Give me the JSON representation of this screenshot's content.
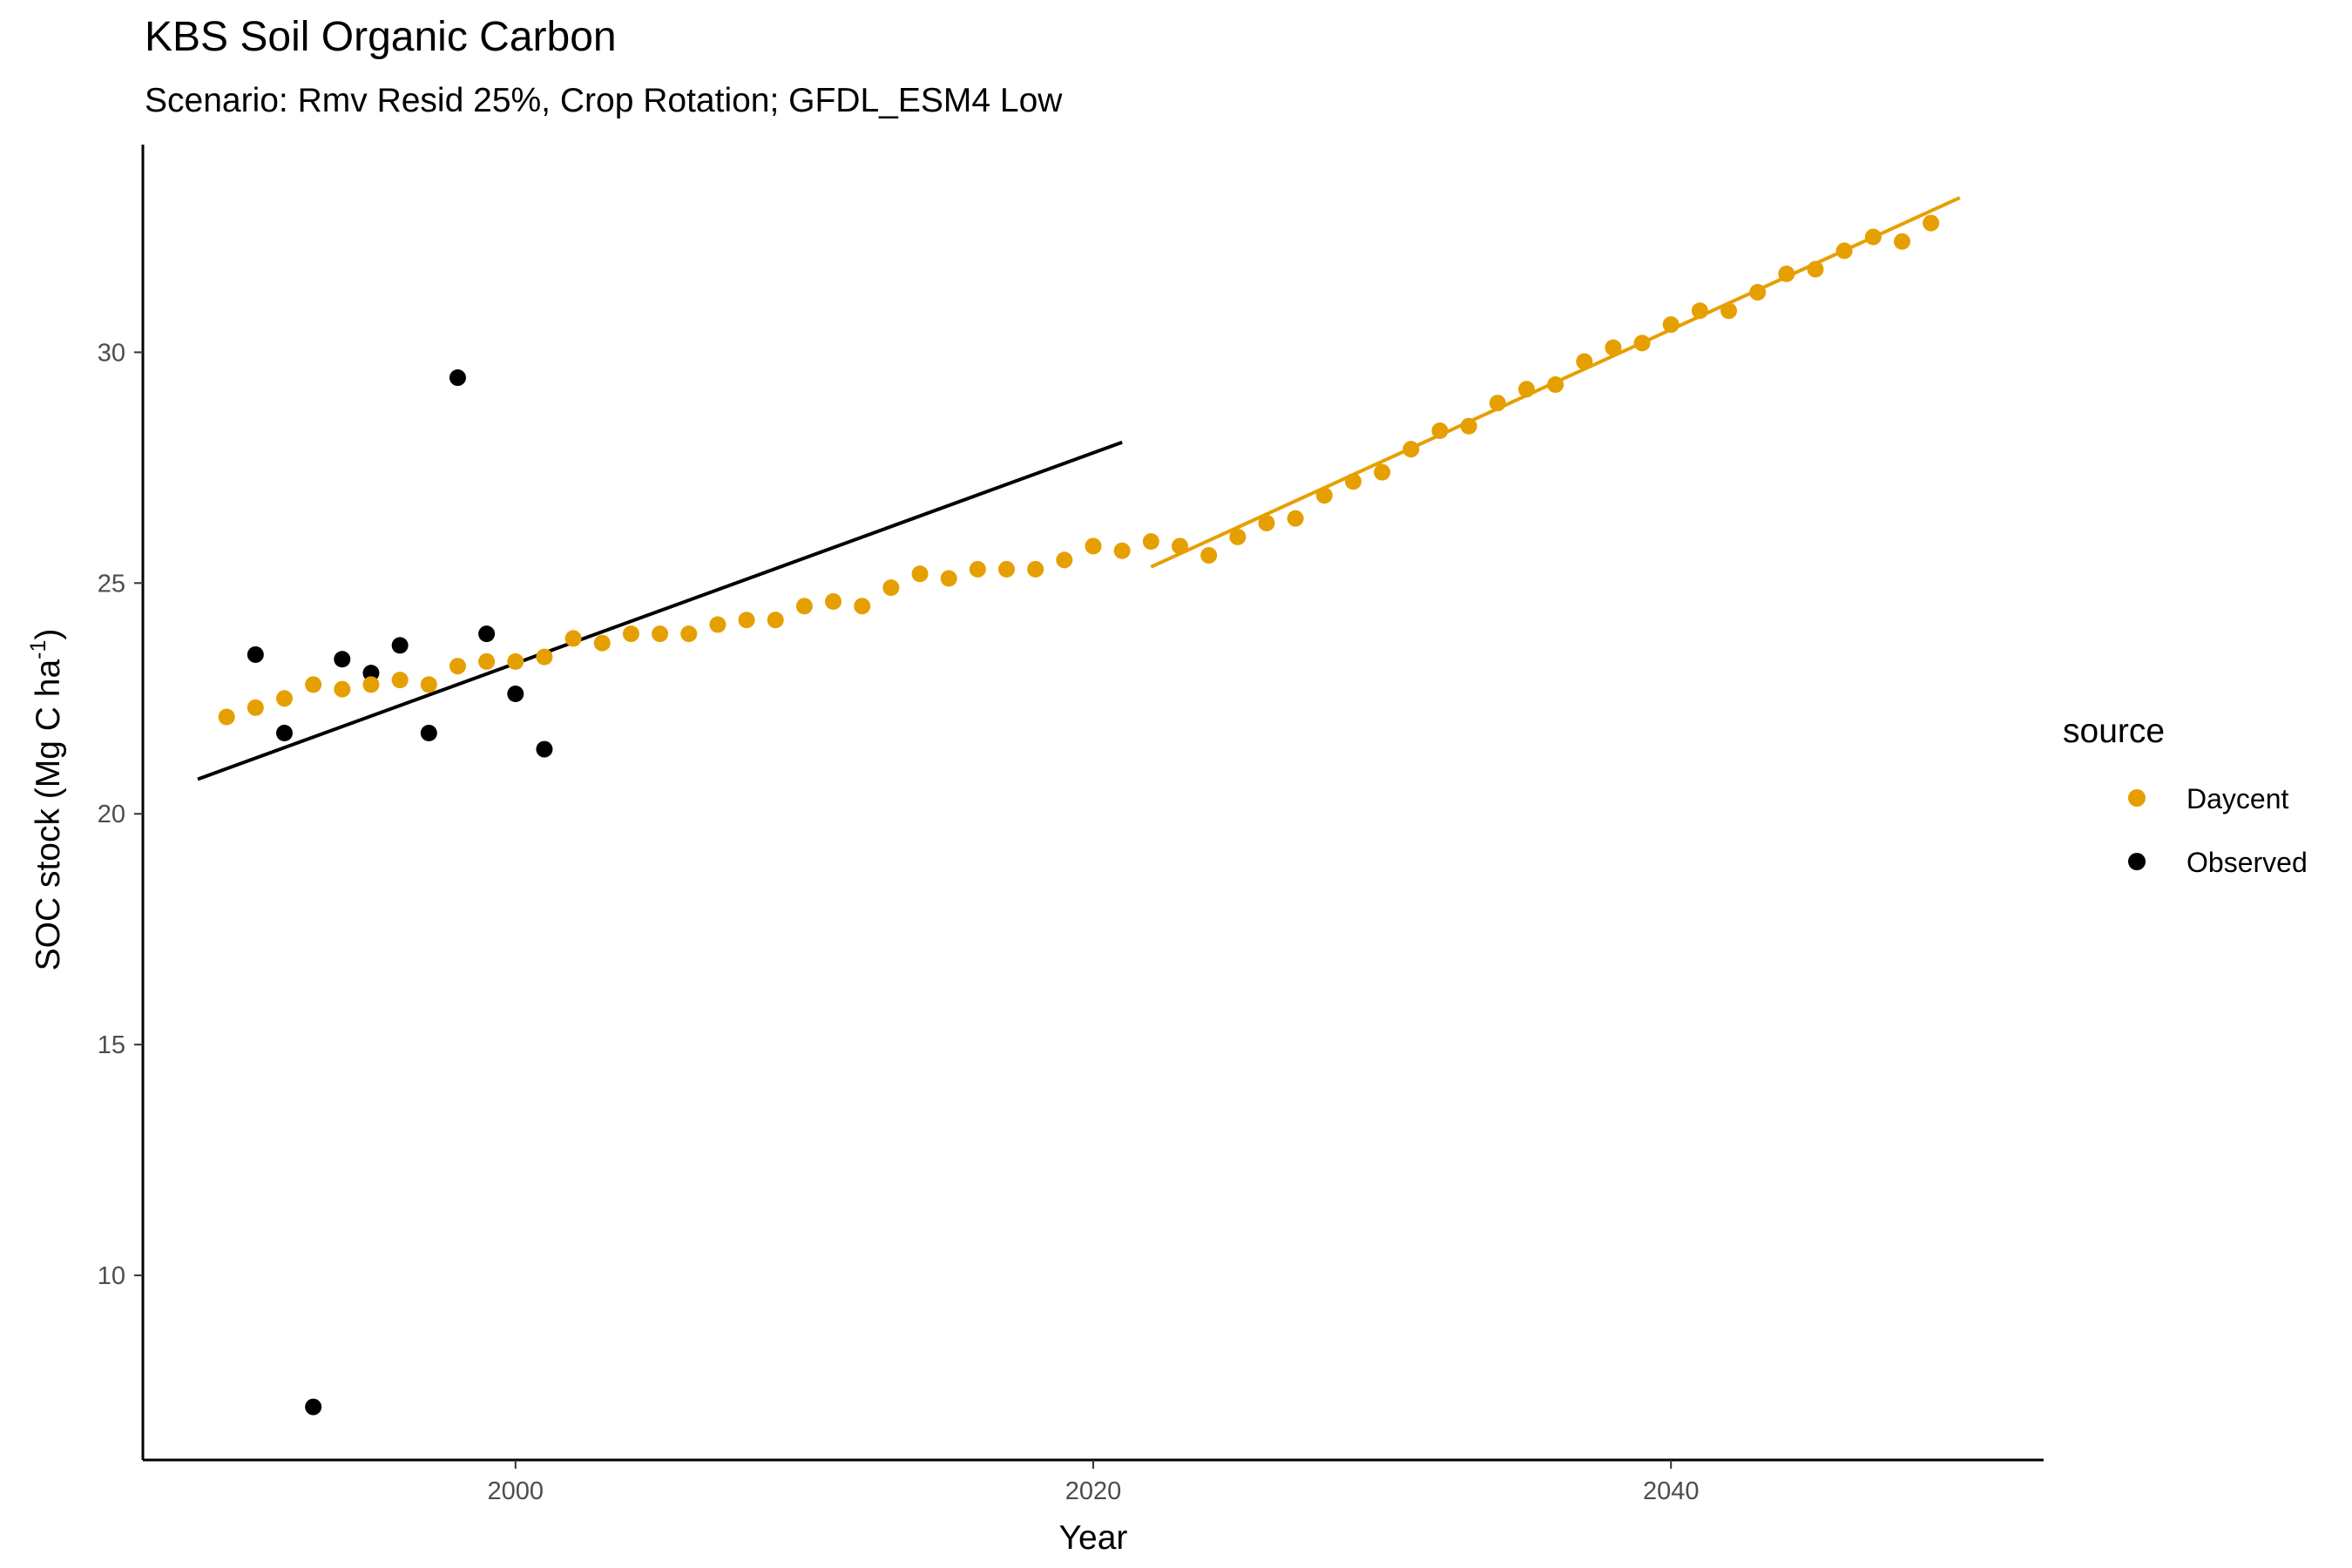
{
  "chart_data": {
    "type": "scatter",
    "title": "KBS Soil Organic Carbon",
    "subtitle": "Scenario: Rmv Resid 25%, Crop Rotation; GFDL_ESM4 Low",
    "xlabel": "Year",
    "ylabel_main": "SOC stock (Mg C ha",
    "ylabel_sup": "-1",
    "ylabel_close": ")",
    "xlim": [
      1987.1,
      2052.9
    ],
    "ylim": [
      6.0,
      34.5
    ],
    "x_ticks": [
      2000,
      2020,
      2040
    ],
    "x_tick_labels": [
      "2000",
      "2020",
      "2040"
    ],
    "y_ticks": [
      10,
      15,
      20,
      25,
      30
    ],
    "y_tick_labels": [
      "10",
      "15",
      "20",
      "25",
      "30"
    ],
    "grid": false,
    "legend": {
      "title": "source",
      "position": "right",
      "entries": [
        {
          "label": "Daycent",
          "color": "#E69F00"
        },
        {
          "label": "Observed",
          "color": "#000000"
        }
      ]
    },
    "series": [
      {
        "name": "Daycent",
        "color": "#E69F00",
        "points": [
          [
            1990,
            22.1
          ],
          [
            1991,
            22.3
          ],
          [
            1992,
            22.5
          ],
          [
            1993,
            22.8
          ],
          [
            1994,
            22.7
          ],
          [
            1995,
            22.8
          ],
          [
            1996,
            22.9
          ],
          [
            1997,
            22.8
          ],
          [
            1998,
            23.2
          ],
          [
            1999,
            23.3
          ],
          [
            2000,
            23.3
          ],
          [
            2001,
            23.4
          ],
          [
            2002,
            23.8
          ],
          [
            2003,
            23.7
          ],
          [
            2004,
            23.9
          ],
          [
            2005,
            23.9
          ],
          [
            2006,
            23.9
          ],
          [
            2007,
            24.1
          ],
          [
            2008,
            24.2
          ],
          [
            2009,
            24.2
          ],
          [
            2010,
            24.5
          ],
          [
            2011,
            24.6
          ],
          [
            2012,
            24.5
          ],
          [
            2013,
            24.9
          ],
          [
            2014,
            25.2
          ],
          [
            2015,
            25.1
          ],
          [
            2016,
            25.3
          ],
          [
            2017,
            25.3
          ],
          [
            2018,
            25.3
          ],
          [
            2019,
            25.5
          ],
          [
            2020,
            25.8
          ],
          [
            2021,
            25.7
          ],
          [
            2022,
            25.9
          ],
          [
            2023,
            25.8
          ],
          [
            2024,
            25.6
          ],
          [
            2025,
            26.0
          ],
          [
            2026,
            26.3
          ],
          [
            2027,
            26.4
          ],
          [
            2028,
            26.9
          ],
          [
            2029,
            27.2
          ],
          [
            2030,
            27.4
          ],
          [
            2031,
            27.9
          ],
          [
            2032,
            28.3
          ],
          [
            2033,
            28.4
          ],
          [
            2034,
            28.9
          ],
          [
            2035,
            29.2
          ],
          [
            2036,
            29.3
          ],
          [
            2037,
            29.8
          ],
          [
            2038,
            30.1
          ],
          [
            2039,
            30.2
          ],
          [
            2040,
            30.6
          ],
          [
            2041,
            30.9
          ],
          [
            2042,
            30.9
          ],
          [
            2043,
            31.3
          ],
          [
            2044,
            31.7
          ],
          [
            2045,
            31.8
          ],
          [
            2046,
            32.2
          ],
          [
            2047,
            32.5
          ],
          [
            2048,
            32.4
          ],
          [
            2049,
            32.8
          ]
        ]
      },
      {
        "name": "Observed",
        "color": "#000000",
        "points": [
          [
            1991,
            23.45
          ],
          [
            1992,
            21.75
          ],
          [
            1993,
            7.15
          ],
          [
            1994,
            23.35
          ],
          [
            1995,
            23.05
          ],
          [
            1996,
            23.65
          ],
          [
            1997,
            21.75
          ],
          [
            1998,
            29.45
          ],
          [
            1999,
            23.9
          ],
          [
            2000,
            22.6
          ],
          [
            2001,
            21.4
          ]
        ]
      }
    ],
    "trend_lines": [
      {
        "color": "#000000",
        "x": [
          1989,
          2021
        ],
        "y": [
          20.75,
          28.05
        ]
      },
      {
        "color": "#E69F00",
        "x": [
          2022,
          2050
        ],
        "y": [
          25.35,
          33.35
        ]
      }
    ]
  }
}
